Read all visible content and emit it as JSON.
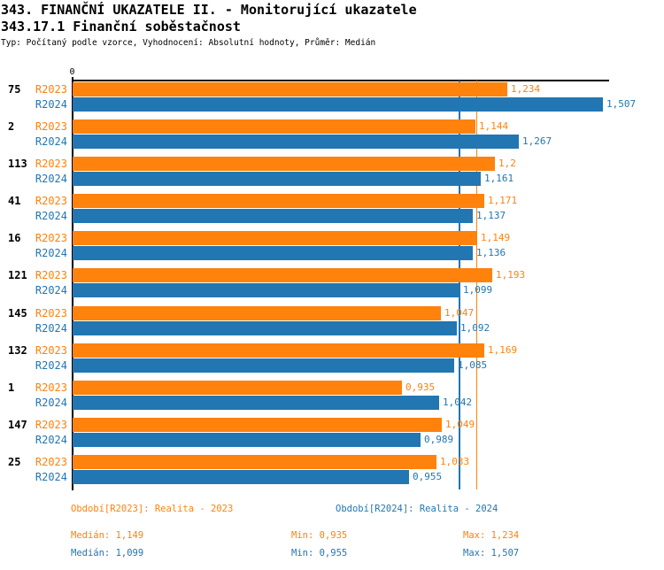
{
  "header": {
    "title1": "343. FINANČNÍ UKAZATELE II. - Monitorující ukazatele",
    "title2": "343.17.1 Finanční soběstačnost",
    "subtitle": "Typ: Počítaný podle vzorce, Vyhodnocení: Absolutní hodnoty, Průměr: Medián"
  },
  "chart_data": {
    "type": "bar",
    "orientation": "horizontal",
    "title": "343.17.1 Finanční soběstačnost",
    "axis": {
      "origin_label": "0",
      "xlim": [
        0,
        1.5245
      ],
      "grid": false
    },
    "colors": {
      "r2023": "#ff820d",
      "r2024": "#2276b2",
      "axis": "#000000"
    },
    "medians": {
      "r2023": 1.149,
      "r2024": 1.099
    },
    "categories": [
      "75",
      "2",
      "113",
      "41",
      "16",
      "121",
      "145",
      "132",
      "1",
      "147",
      "25"
    ],
    "series": [
      {
        "name": "R2023",
        "values": [
          1.234,
          1.144,
          1.2,
          1.171,
          1.149,
          1.193,
          1.047,
          1.169,
          0.935,
          1.049,
          1.033
        ],
        "labels": [
          "1,234",
          "1,144",
          "1,2",
          "1,171",
          "1,149",
          "1,193",
          "1,047",
          "1,169",
          "0,935",
          "1,049",
          "1,033"
        ]
      },
      {
        "name": "R2024",
        "values": [
          1.507,
          1.267,
          1.161,
          1.137,
          1.136,
          1.099,
          1.092,
          1.085,
          1.042,
          0.989,
          0.955
        ],
        "labels": [
          "1,507",
          "1,267",
          "1,161",
          "1,137",
          "1,136",
          "1,099",
          "1,092",
          "1,085",
          "1,042",
          "0,989",
          "0,955"
        ]
      }
    ]
  },
  "footer": {
    "legend_2023": "Období[R2023]: Realita - 2023",
    "legend_2024": "Období[R2024]: Realita - 2024",
    "stats_2023": {
      "median": "Medián: 1,149",
      "min": "Min: 0,935",
      "max": "Max: 1,234"
    },
    "stats_2024": {
      "median": "Medián: 1,099",
      "min": "Min: 0,955",
      "max": "Max: 1,507"
    }
  }
}
